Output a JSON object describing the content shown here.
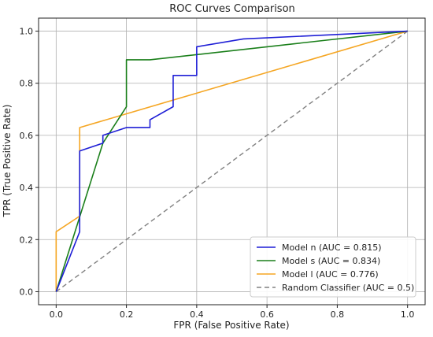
{
  "chart_data": {
    "type": "line",
    "title": "ROC Curves Comparison",
    "xlabel": "FPR (False Positive Rate)",
    "ylabel": "TPR (True Positive Rate)",
    "xlim": [
      -0.05,
      1.05
    ],
    "ylim": [
      -0.05,
      1.05
    ],
    "xticks": [
      0.0,
      0.2,
      0.4,
      0.6,
      0.8,
      1.0
    ],
    "yticks": [
      0.0,
      0.2,
      0.4,
      0.6,
      0.8,
      1.0
    ],
    "xtick_labels": [
      "0.0",
      "0.2",
      "0.4",
      "0.6",
      "0.8",
      "1.0"
    ],
    "ytick_labels": [
      "0.0",
      "0.2",
      "0.4",
      "0.6",
      "0.8",
      "1.0"
    ],
    "grid": true,
    "legend_position": "bottom-right",
    "series": [
      {
        "name": "Model n (AUC = 0.815)",
        "color": "#1f1fd6",
        "dash": "solid",
        "x": [
          0.0,
          0.067,
          0.067,
          0.133,
          0.133,
          0.2,
          0.267,
          0.267,
          0.333,
          0.333,
          0.4,
          0.4,
          0.533,
          1.0
        ],
        "y": [
          0.0,
          0.23,
          0.54,
          0.57,
          0.6,
          0.63,
          0.63,
          0.66,
          0.71,
          0.83,
          0.83,
          0.94,
          0.97,
          1.0
        ]
      },
      {
        "name": "Model s (AUC = 0.834)",
        "color": "#1a7f1a",
        "dash": "solid",
        "x": [
          0.0,
          0.133,
          0.2,
          0.2,
          0.267,
          1.0
        ],
        "y": [
          0.0,
          0.57,
          0.71,
          0.89,
          0.89,
          1.0
        ]
      },
      {
        "name": "Model l (AUC = 0.776)",
        "color": "#f5a623",
        "dash": "solid",
        "x": [
          0.0,
          0.0,
          0.067,
          0.067,
          1.0
        ],
        "y": [
          0.0,
          0.23,
          0.29,
          0.63,
          1.0
        ]
      },
      {
        "name": "Random Classifier (AUC = 0.5)",
        "color": "#808080",
        "dash": "dashed",
        "x": [
          0.0,
          1.0
        ],
        "y": [
          0.0,
          1.0
        ]
      }
    ]
  }
}
